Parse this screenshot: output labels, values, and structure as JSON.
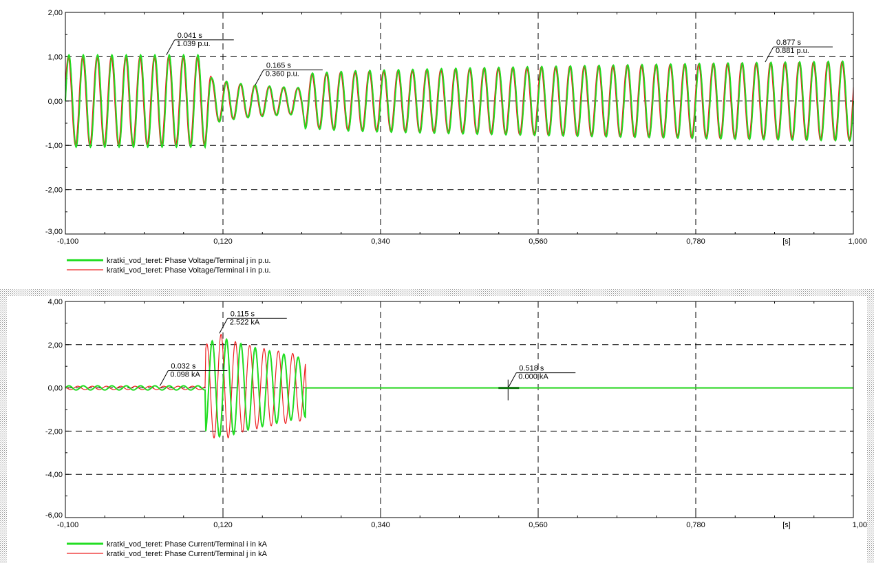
{
  "chart_data": [
    {
      "type": "line",
      "x_unit": "[s]",
      "xlim": [
        -0.1,
        1.0
      ],
      "ylim": [
        -3.0,
        2.0
      ],
      "x_ticks": [
        "-0,100",
        "0,120",
        "0,340",
        "0,560",
        "0,780",
        "1,000"
      ],
      "x_tick_values": [
        -0.1,
        0.12,
        0.34,
        0.56,
        0.78,
        1.0
      ],
      "y_ticks": [
        "2,00",
        "1,00",
        "0,00",
        "-1,00",
        "-2,00",
        "-3,00"
      ],
      "y_tick_values": [
        2.0,
        1.0,
        0.0,
        -1.0,
        -2.0,
        -3.0
      ],
      "grid": true,
      "legend_position": "bottom-left",
      "frequency_hz": 50,
      "series": [
        {
          "name": "kratki_vod_teret: Phase Voltage/Terminal j in p.u.",
          "color": "#22dd22",
          "envelope": {
            "t": [
              -0.1,
              0.095,
              0.105,
              0.14,
              0.165,
              0.2,
              0.23,
              0.235,
              0.3,
              0.45,
              0.6,
              0.8,
              1.0
            ],
            "amp": [
              1.039,
              1.039,
              0.5,
              0.4,
              0.36,
              0.32,
              0.3,
              0.62,
              0.68,
              0.74,
              0.79,
              0.85,
              0.9
            ]
          },
          "phase": 0
        },
        {
          "name": "kratki_vod_teret: Phase Voltage/Terminal i in p.u.",
          "color": "#ee2222",
          "envelope": {
            "t": [
              -0.1,
              0.095,
              0.105,
              0.14,
              0.165,
              0.2,
              0.23,
              0.235,
              0.3,
              0.45,
              0.6,
              0.8,
              1.0
            ],
            "amp": [
              1.0,
              1.0,
              0.48,
              0.39,
              0.35,
              0.31,
              0.29,
              0.6,
              0.66,
              0.72,
              0.78,
              0.84,
              0.89
            ]
          },
          "phase": 0.35
        }
      ],
      "annotations": [
        {
          "x": 0.041,
          "y": 1.039,
          "time_label": "0.041 s",
          "value_label": "1.039 p.u."
        },
        {
          "x": 0.165,
          "y": 0.36,
          "time_label": "0.165 s",
          "value_label": "0.360 p.u."
        },
        {
          "x": 0.877,
          "y": 0.881,
          "time_label": "0.877 s",
          "value_label": "0.881 p.u."
        }
      ]
    },
    {
      "type": "line",
      "x_unit": "[s]",
      "xlim": [
        -0.1,
        1.0
      ],
      "ylim": [
        -6.0,
        4.0
      ],
      "x_ticks": [
        "-0,100",
        "0,120",
        "0,340",
        "0,560",
        "0,780",
        "1,00"
      ],
      "x_tick_values": [
        -0.1,
        0.12,
        0.34,
        0.56,
        0.78,
        1.0
      ],
      "y_ticks": [
        "4,00",
        "2,00",
        "0,00",
        "-2,00",
        "-4,00",
        "-6,00"
      ],
      "y_tick_values": [
        4.0,
        2.0,
        0.0,
        -2.0,
        -4.0,
        -6.0
      ],
      "grid": true,
      "legend_position": "bottom-left",
      "frequency_hz": 50,
      "series": [
        {
          "name": "kratki_vod_teret: Phase Current/Terminal i in kA",
          "color": "#22dd22",
          "envelope": {
            "t": [
              -0.1,
              0.095,
              0.096,
              0.12,
              0.16,
              0.2,
              0.235,
              0.236,
              1.0
            ],
            "amp": [
              0.098,
              0.098,
              2.1,
              2.3,
              1.9,
              1.6,
              1.35,
              0.0,
              0.0
            ]
          },
          "phase": 0
        },
        {
          "name": "kratki_vod_teret: Phase Current/Terminal j in kA",
          "color": "#ee2222",
          "envelope": {
            "t": [
              -0.1,
              0.095,
              0.096,
              0.115,
              0.14,
              0.18,
              0.235,
              0.236,
              1.0
            ],
            "amp": [
              0.08,
              0.08,
              2.0,
              2.522,
              2.1,
              1.8,
              1.5,
              0.0,
              0.0
            ]
          },
          "phase": 2.4
        }
      ],
      "annotations": [
        {
          "x": 0.032,
          "y": 0.098,
          "time_label": "0.032 s",
          "value_label": "0.098 kA"
        },
        {
          "x": 0.115,
          "y": 2.522,
          "time_label": "0.115 s",
          "value_label": "2.522 kA"
        },
        {
          "x": 0.518,
          "y": 0.0,
          "time_label": "0.518 s",
          "value_label": "0.000 kA"
        }
      ]
    }
  ]
}
